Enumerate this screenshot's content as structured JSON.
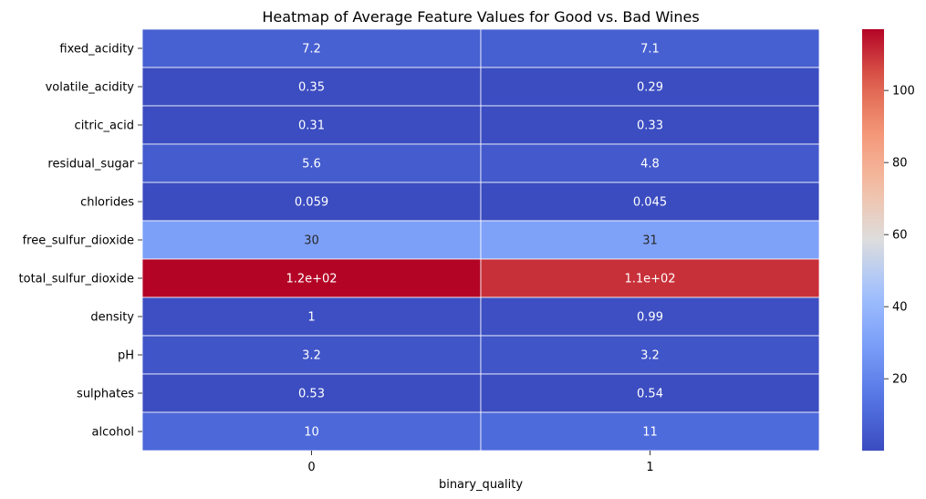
{
  "chart_data": {
    "type": "heatmap",
    "title": "Heatmap of Average Feature Values for Good vs. Bad Wines",
    "xlabel": "binary_quality",
    "ylabel": "",
    "columns": [
      "0",
      "1"
    ],
    "rows": [
      "fixed_acidity",
      "volatile_acidity",
      "citric_acid",
      "residual_sugar",
      "chlorides",
      "free_sulfur_dioxide",
      "total_sulfur_dioxide",
      "density",
      "pH",
      "sulphates",
      "alcohol"
    ],
    "values": [
      [
        7.2,
        7.1
      ],
      [
        0.35,
        0.29
      ],
      [
        0.31,
        0.33
      ],
      [
        5.6,
        4.8
      ],
      [
        0.059,
        0.045
      ],
      [
        30,
        31
      ],
      [
        117,
        110
      ],
      [
        1.0,
        0.99
      ],
      [
        3.2,
        3.2
      ],
      [
        0.53,
        0.54
      ],
      [
        10,
        11
      ]
    ],
    "annotations": [
      [
        "7.2",
        "7.1"
      ],
      [
        "0.35",
        "0.29"
      ],
      [
        "0.31",
        "0.33"
      ],
      [
        "5.6",
        "4.8"
      ],
      [
        "0.059",
        "0.045"
      ],
      [
        "30",
        "31"
      ],
      [
        "1.2e+02",
        "1.1e+02"
      ],
      [
        "1",
        "0.99"
      ],
      [
        "3.2",
        "3.2"
      ],
      [
        "0.53",
        "0.54"
      ],
      [
        "10",
        "11"
      ]
    ],
    "colormap": "coolwarm",
    "vmin": 0.045,
    "vmax": 117,
    "colorbar_ticks": [
      "20",
      "40",
      "60",
      "80",
      "100"
    ],
    "colorbar_tick_values": [
      20,
      40,
      60,
      80,
      100
    ],
    "cell_border_color": "#ffffff"
  }
}
